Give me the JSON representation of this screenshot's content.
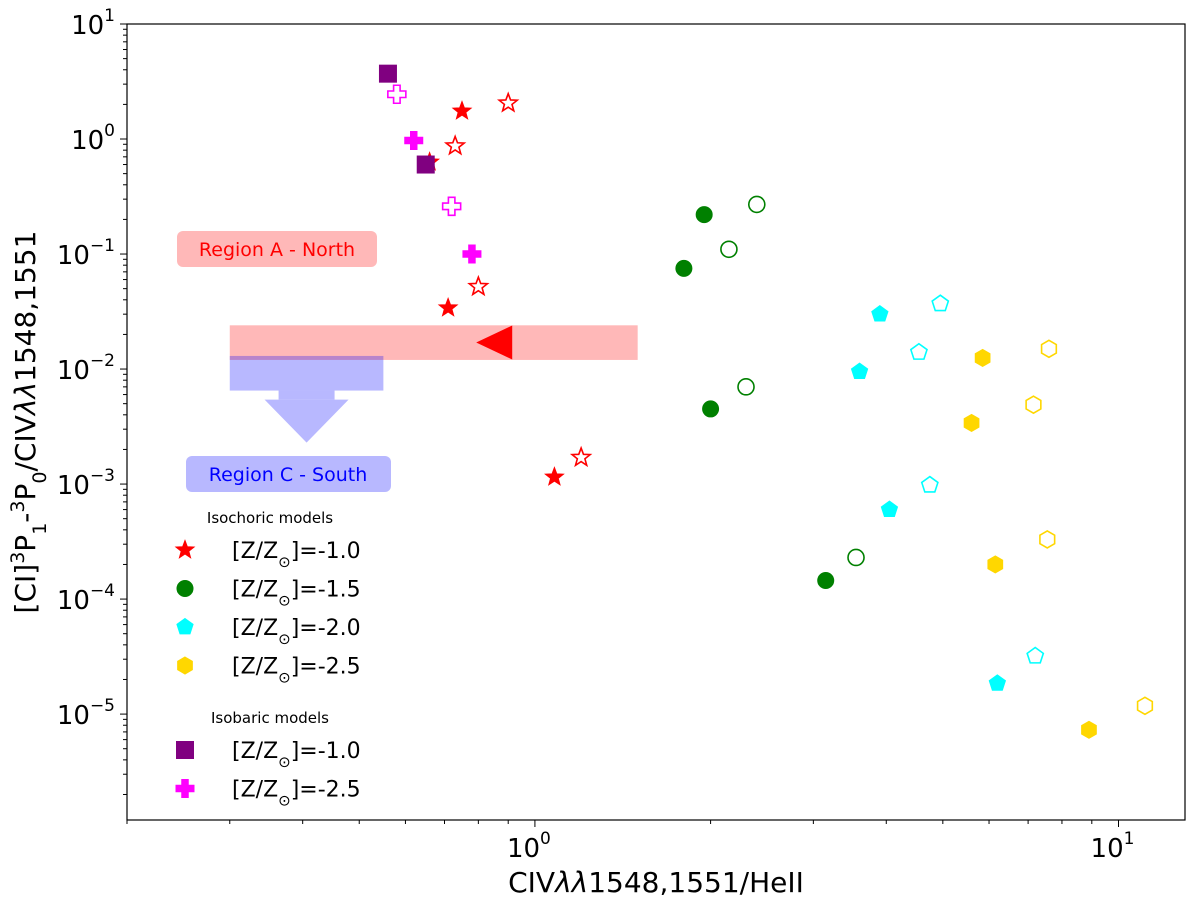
{
  "chart_data": {
    "type": "scatter",
    "x_axis": {
      "label_parts": [
        "CIV",
        "λλ",
        "1548,1551/HeII"
      ],
      "scale": "log",
      "xlim": [
        0.2,
        13
      ],
      "ticks": [
        {
          "value": 1,
          "base": "10",
          "exp": "0"
        },
        {
          "value": 10,
          "base": "10",
          "exp": "1"
        }
      ]
    },
    "y_axis": {
      "label_parts": [
        "[CI]",
        "3",
        "P",
        "1",
        "-",
        "3",
        "P",
        "0",
        "/CIV",
        "λλ",
        "1548,1551"
      ],
      "scale": "log",
      "ylim": [
        1.2e-06,
        10
      ],
      "ticks": [
        {
          "value": 10,
          "base": "10",
          "exp": "1"
        },
        {
          "value": 1,
          "base": "10",
          "exp": "0"
        },
        {
          "value": 0.1,
          "base": "10",
          "exp": "−1"
        },
        {
          "value": 0.01,
          "base": "10",
          "exp": "−2"
        },
        {
          "value": 0.001,
          "base": "10",
          "exp": "−3"
        },
        {
          "value": 0.0001,
          "base": "10",
          "exp": "−4"
        },
        {
          "value": 1e-05,
          "base": "10",
          "exp": "−5"
        }
      ]
    },
    "series": [
      {
        "name": "Isochoric [Z/Z⊙]=-1.0",
        "model": "isochoric",
        "metallicity": "-1.0",
        "marker": "star",
        "color": "#ff0000",
        "filled": [
          [
            0.75,
            1.75
          ],
          [
            0.71,
            0.034
          ],
          [
            1.08,
            0.00115
          ],
          [
            0.66,
            0.63
          ]
        ],
        "open": [
          [
            0.9,
            2.05
          ],
          [
            0.73,
            0.87
          ],
          [
            0.8,
            0.052
          ],
          [
            1.2,
            0.0017
          ]
        ]
      },
      {
        "name": "Isochoric [Z/Z⊙]=-1.5",
        "model": "isochoric",
        "metallicity": "-1.5",
        "marker": "circle",
        "color": "#008000",
        "filled": [
          [
            1.95,
            0.22
          ],
          [
            1.8,
            0.075
          ],
          [
            2.0,
            0.0045
          ],
          [
            3.15,
            0.000145
          ]
        ],
        "open": [
          [
            2.4,
            0.27
          ],
          [
            2.15,
            0.11
          ],
          [
            2.3,
            0.007
          ],
          [
            3.55,
            0.00023
          ]
        ]
      },
      {
        "name": "Isochoric [Z/Z⊙]=-2.0",
        "model": "isochoric",
        "metallicity": "-2.0",
        "marker": "pentagon",
        "color": "#00ffff",
        "filled": [
          [
            3.9,
            0.03
          ],
          [
            3.6,
            0.0095
          ],
          [
            4.05,
            0.0006
          ],
          [
            6.2,
            1.85e-05
          ]
        ],
        "open": [
          [
            4.95,
            0.037
          ],
          [
            4.55,
            0.014
          ],
          [
            4.75,
            0.00098
          ],
          [
            7.2,
            3.2e-05
          ]
        ]
      },
      {
        "name": "Isochoric [Z/Z⊙]=-2.5",
        "model": "isochoric",
        "metallicity": "-2.5",
        "marker": "hexagon",
        "color": "#ffd700",
        "filled": [
          [
            5.85,
            0.0125
          ],
          [
            5.6,
            0.0034
          ],
          [
            6.15,
            0.0002
          ],
          [
            8.9,
            7.3e-06
          ]
        ],
        "open": [
          [
            7.6,
            0.015
          ],
          [
            7.15,
            0.0049
          ],
          [
            7.55,
            0.00033
          ],
          [
            11.1,
            1.18e-05
          ]
        ]
      },
      {
        "name": "Isobaric [Z/Z⊙]=-1.0",
        "model": "isobaric",
        "metallicity": "-1.0",
        "marker": "square",
        "color": "#800080",
        "filled": [
          [
            0.56,
            3.7
          ],
          [
            0.65,
            0.6
          ]
        ],
        "open": []
      },
      {
        "name": "Isobaric [Z/Z⊙]=-2.5",
        "model": "isobaric",
        "metallicity": "-2.5",
        "marker": "plus",
        "color": "#ff00ff",
        "filled": [
          [
            0.62,
            0.97
          ],
          [
            0.78,
            0.1
          ]
        ],
        "open": [
          [
            0.58,
            2.45
          ],
          [
            0.72,
            0.26
          ]
        ]
      }
    ],
    "regions": [
      {
        "name": "Region A - North",
        "color": "#ff0000",
        "x_range": [
          0.3,
          1.5
        ],
        "y_range": [
          0.012,
          0.024
        ],
        "limit": "upper limit in x",
        "marker": "left-triangle",
        "marker_x": 0.9,
        "marker_y": 0.017
      },
      {
        "name": "Region C - South",
        "color": "#0000ff",
        "x_range": [
          0.3,
          0.55
        ],
        "y_range": [
          0.0065,
          0.013
        ],
        "limit": "upper limit in y",
        "marker": "down-arrow"
      }
    ],
    "legend": {
      "position": "lower-left",
      "groups": [
        {
          "header": "Isochoric models",
          "entries": [
            {
              "marker": "star",
              "color": "#ff0000",
              "text_parts": [
                "[Z/Z",
                "⊙",
                "]=-1.0"
              ]
            },
            {
              "marker": "circle",
              "color": "#008000",
              "text_parts": [
                "[Z/Z",
                "⊙",
                "]=-1.5"
              ]
            },
            {
              "marker": "pentagon",
              "color": "#00ffff",
              "text_parts": [
                "[Z/Z",
                "⊙",
                "]=-2.0"
              ]
            },
            {
              "marker": "hexagon",
              "color": "#ffd700",
              "text_parts": [
                "[Z/Z",
                "⊙",
                "]=-2.5"
              ]
            }
          ]
        },
        {
          "header": "Isobaric models",
          "entries": [
            {
              "marker": "square",
              "color": "#800080",
              "text_parts": [
                "[Z/Z",
                "⊙",
                "]=-1.0"
              ]
            },
            {
              "marker": "plus",
              "color": "#ff00ff",
              "text_parts": [
                "[Z/Z",
                "⊙",
                "]=-2.5"
              ]
            }
          ]
        }
      ]
    }
  }
}
